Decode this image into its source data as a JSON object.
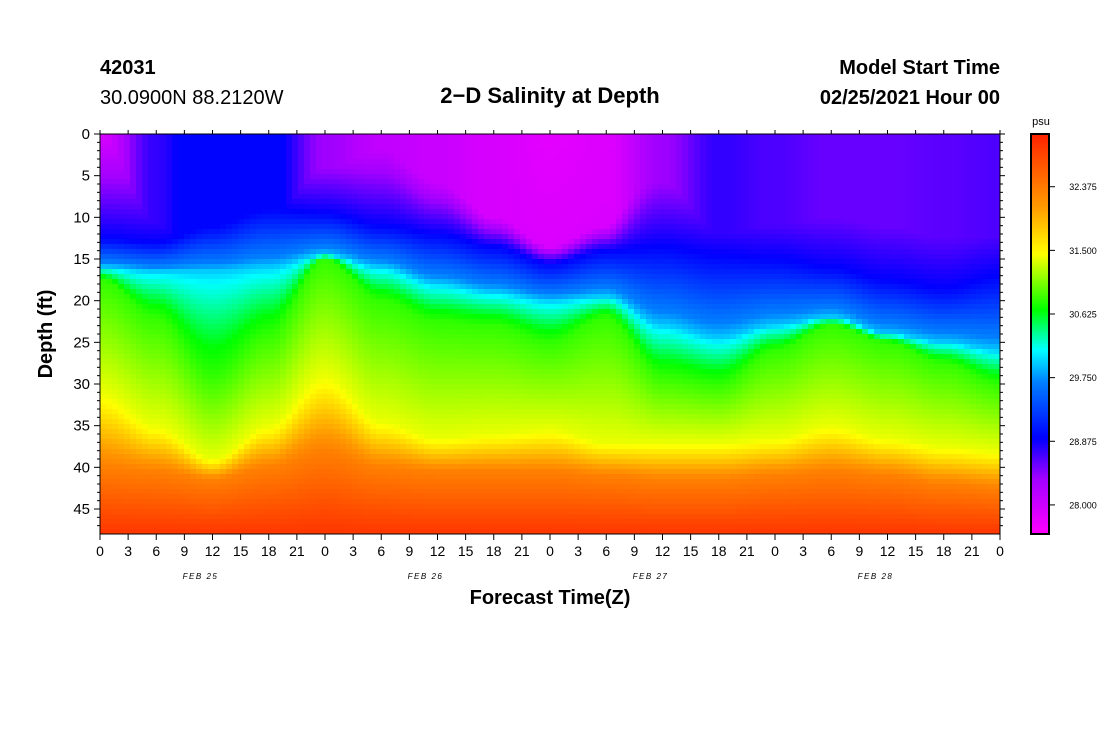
{
  "header": {
    "station_id": "42031",
    "coords": "30.0900N 88.2120W",
    "title": "2−D Salinity at Depth",
    "model_label": "Model Start Time",
    "model_time": "02/25/2021 Hour 00"
  },
  "chart_data": {
    "type": "heatmap",
    "title": "2−D Salinity at Depth",
    "xlabel": "Forecast Time(Z)",
    "ylabel": "Depth (ft)",
    "x_ticks": [
      "0",
      "3",
      "6",
      "9",
      "12",
      "15",
      "18",
      "21",
      "0",
      "3",
      "6",
      "9",
      "12",
      "15",
      "18",
      "21",
      "0",
      "3",
      "6",
      "9",
      "12",
      "15",
      "18",
      "21",
      "0",
      "3",
      "6",
      "9",
      "12",
      "15",
      "18",
      "21",
      "0"
    ],
    "day_labels": [
      "FEB 25",
      "FEB 26",
      "FEB 27",
      "FEB 28"
    ],
    "x_hours": [
      0,
      96
    ],
    "y_ticks": [
      "0",
      "5",
      "10",
      "15",
      "20",
      "25",
      "30",
      "35",
      "40",
      "45"
    ],
    "ylim": [
      0,
      48
    ],
    "y_inverted": true,
    "colorbar": {
      "unit": "psu",
      "ticks": [
        "28.000",
        "28.875",
        "29.750",
        "30.625",
        "31.500",
        "32.375"
      ],
      "range": [
        27.6,
        33.1
      ]
    },
    "isohaline_depths_ft": {
      "hours": [
        0,
        6,
        12,
        18,
        24,
        30,
        36,
        42,
        48,
        54,
        60,
        66,
        72,
        78,
        84,
        90,
        96
      ],
      "s28_875": [
        12.5,
        13,
        11,
        9,
        9.5,
        11,
        12,
        13.5,
        15.5,
        14,
        13.5,
        14.5,
        15,
        16,
        17.5,
        18.5,
        17
      ],
      "s29_750": [
        16,
        16.5,
        16.5,
        16,
        14.5,
        16,
        18,
        19,
        20,
        19.5,
        23,
        24.5,
        23,
        22,
        24,
        25,
        26
      ],
      "s30_625": [
        17.5,
        22,
        29,
        24,
        15,
        20,
        22.5,
        23,
        25,
        22,
        29,
        30,
        26,
        23,
        25,
        27.5,
        30
      ],
      "s31_500": [
        31,
        35,
        39,
        35,
        29,
        34.5,
        36.5,
        36,
        35.5,
        37,
        37,
        37,
        36.5,
        35,
        36.5,
        37.5,
        38
      ],
      "s32_375": [
        40,
        40.5,
        41.5,
        40,
        38,
        40,
        40.5,
        40.5,
        40.5,
        41,
        41.5,
        41.5,
        41,
        40.5,
        41,
        42,
        42.5
      ]
    },
    "surface_zone": {
      "hours": [
        0,
        6,
        12,
        18,
        24,
        30,
        36,
        42,
        48,
        54,
        60,
        66,
        72,
        78,
        84,
        90,
        96
      ],
      "surface_salinity": [
        27.9,
        28.7,
        29.3,
        29.0,
        28.3,
        28.05,
        28.0,
        27.9,
        27.8,
        27.85,
        28.3,
        28.7,
        28.6,
        28.5,
        28.5,
        28.55,
        28.6
      ],
      "s27_875_depth_ft": [
        0,
        0,
        0,
        0,
        0,
        0,
        5,
        10,
        13.5,
        11,
        0,
        0,
        0,
        0,
        0,
        0,
        0
      ]
    }
  }
}
